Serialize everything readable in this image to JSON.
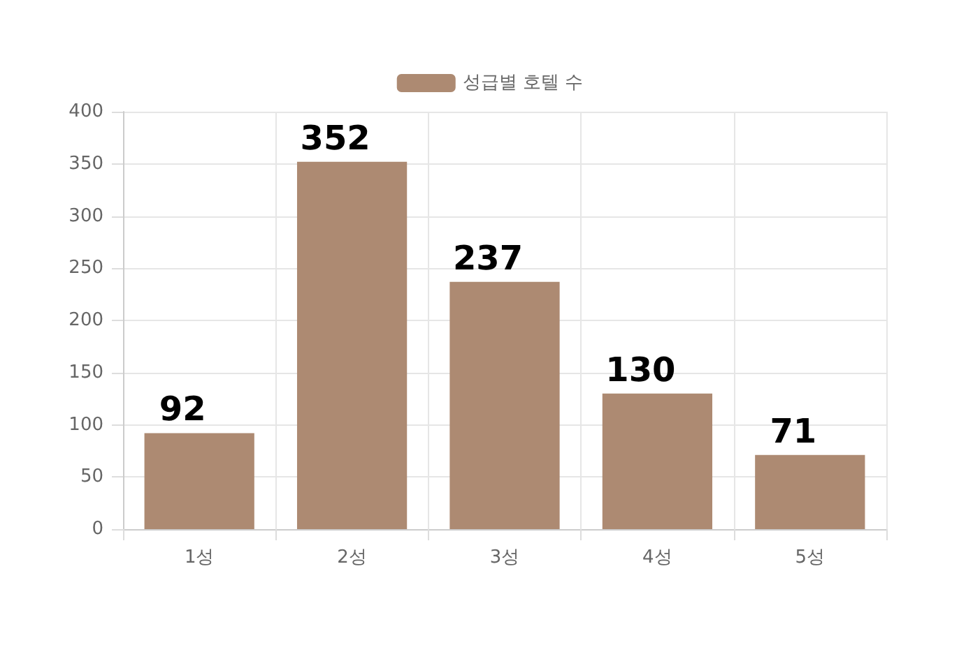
{
  "chart_data": {
    "type": "bar",
    "categories": [
      "1성",
      "2성",
      "3성",
      "4성",
      "5성"
    ],
    "series": [
      {
        "name": "성급별 호텔 수",
        "color": "#ad8a72",
        "values": [
          92,
          352,
          237,
          130,
          71
        ]
      }
    ],
    "ylim": [
      0,
      400
    ],
    "yticks": [
      0,
      50,
      100,
      150,
      200,
      250,
      300,
      350,
      400
    ],
    "grid": true,
    "legend": "top",
    "data_labels": true
  }
}
